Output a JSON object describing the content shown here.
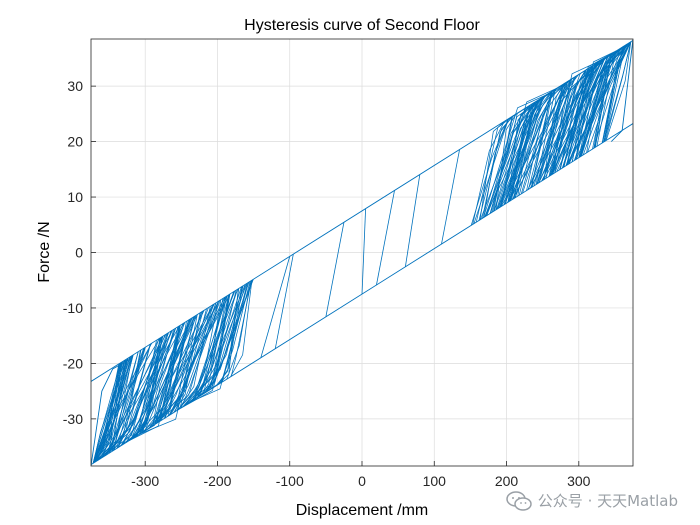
{
  "chart_data": {
    "type": "line",
    "title": "Hysteresis curve of Second Floor",
    "xlabel": "Displacement /mm",
    "ylabel": "Force /N",
    "xlim": [
      -375,
      375
    ],
    "ylim": [
      -38.5,
      38.5
    ],
    "xticks": [
      -300,
      -200,
      -100,
      0,
      100,
      200,
      300
    ],
    "yticks": [
      -30,
      -20,
      -10,
      0,
      10,
      20,
      30
    ],
    "grid": true,
    "line_color": "#0072BD",
    "envelope": {
      "upper_left": [
        -375,
        -38.5
      ],
      "upper_right": [
        375,
        38.5
      ],
      "lower_left": [
        -375,
        -38.5
      ],
      "lower_right": [
        375,
        38.5
      ],
      "upper_y_at_x0": 7.5,
      "lower_y_at_x0": -7.5,
      "slope": 0.082
    },
    "series": [
      {
        "values_note": "",
        "x": [
          -375,
          -340,
          -318,
          -300,
          -280,
          -260,
          -250,
          -240,
          -230,
          -220,
          -210,
          -200,
          -190,
          -180,
          -160,
          -140,
          -100,
          -50,
          -20,
          5,
          45,
          80,
          100,
          130,
          150,
          170,
          190,
          200,
          210,
          220,
          230,
          240,
          250,
          260,
          270,
          280,
          290,
          300,
          320,
          350,
          375
        ],
        "y": [
          -38.5,
          -31,
          -20,
          -19,
          -16,
          -14,
          -13,
          -12,
          -11,
          -10,
          -9,
          -8,
          -6.5,
          -5.5,
          -4,
          -2,
          -1,
          -11.5,
          5,
          4,
          14.5,
          12,
          10,
          12,
          13,
          14,
          15,
          16,
          17,
          18,
          19,
          20,
          21,
          22,
          22.5,
          23,
          23.5,
          24,
          27,
          35,
          38.5
        ]
      }
    ]
  },
  "watermark": {
    "text": "公众号 · 天天Matlab",
    "icon": "wechat-icon"
  }
}
